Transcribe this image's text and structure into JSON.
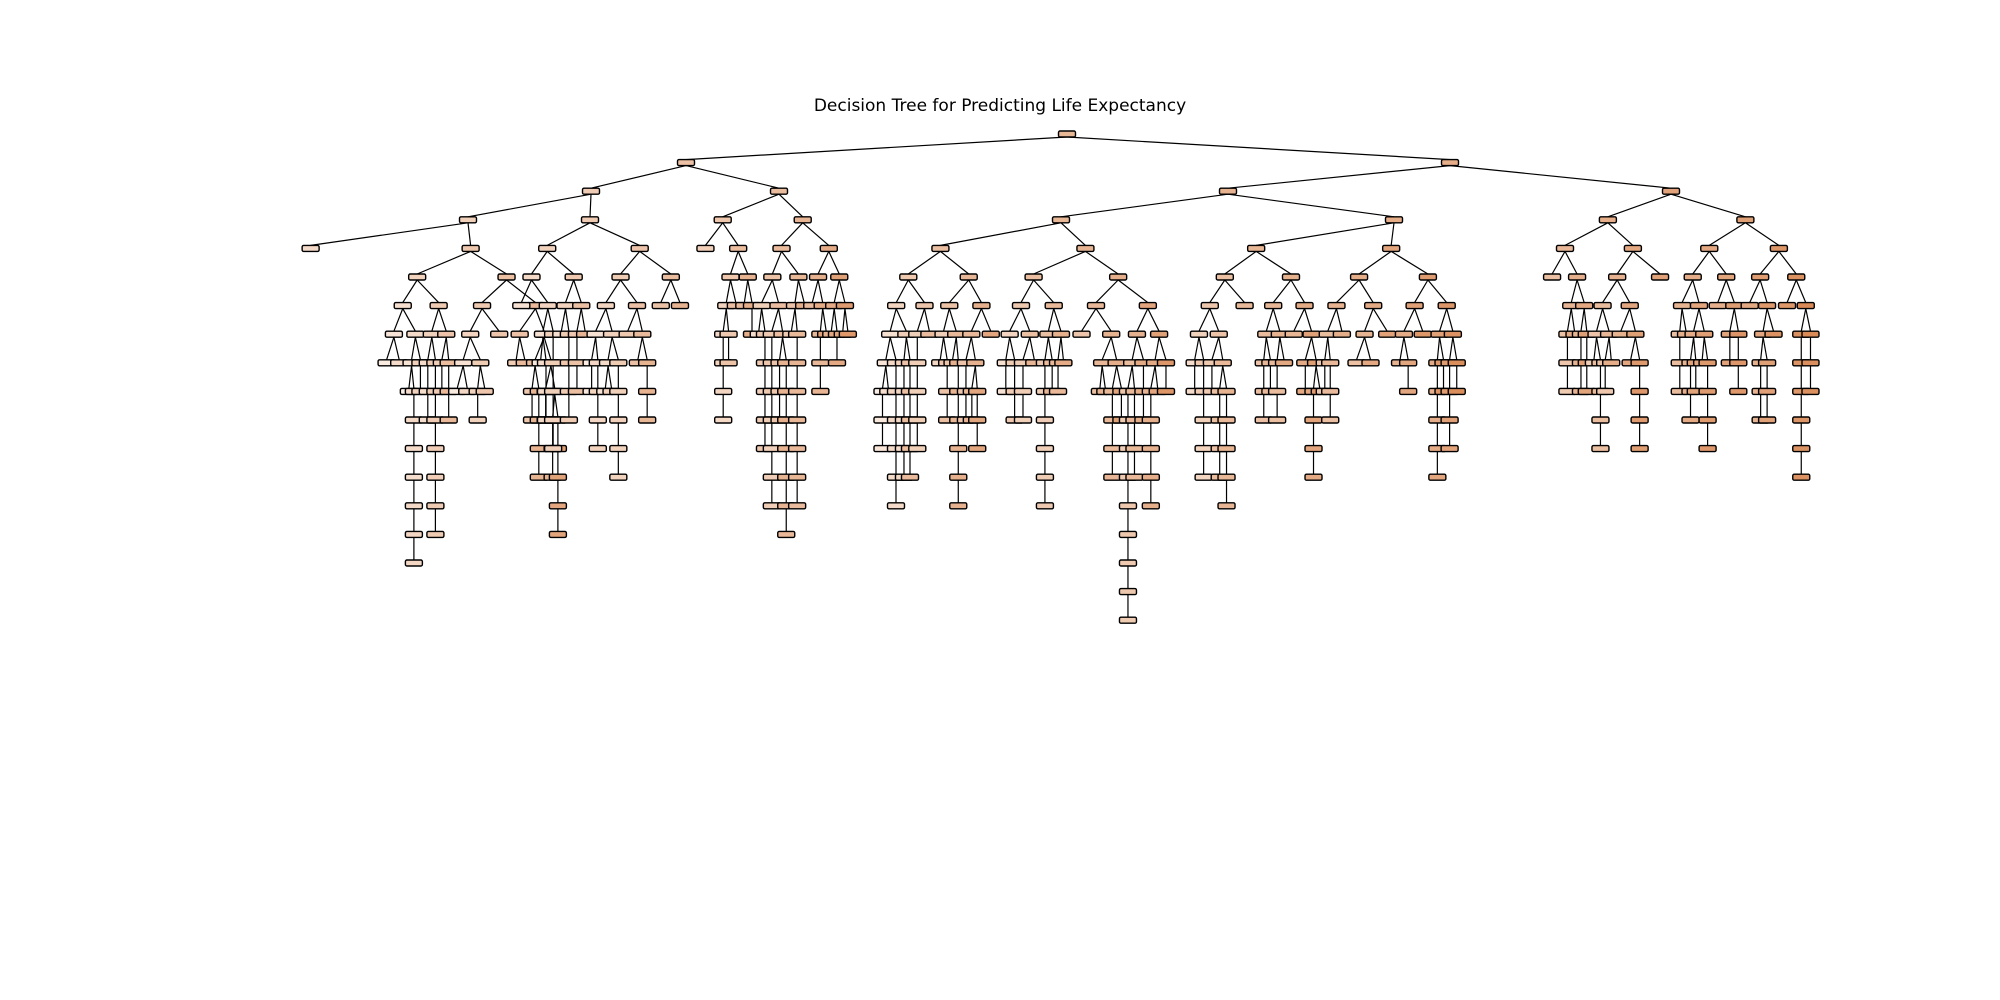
{
  "figure": {
    "title": "Decision Tree for Predicting Life Expectancy",
    "background_color": "#ffffff",
    "edge_color": "#000000",
    "node_color_scale": {
      "low": "#fbeee4",
      "high": "#d98a57"
    }
  }
}
